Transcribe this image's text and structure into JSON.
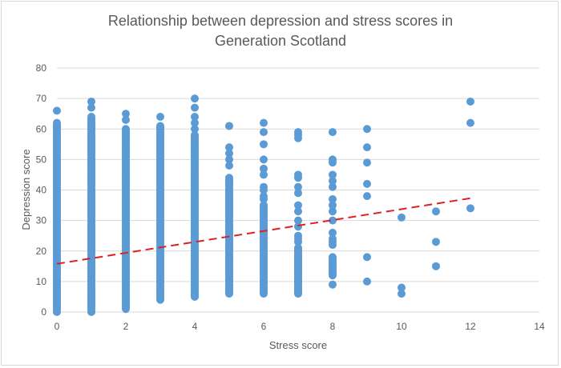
{
  "chart_data": {
    "type": "scatter",
    "title_line1": "Relationship between depression and stress scores in",
    "title_line2": "Generation Scotland",
    "xlabel": "Stress score",
    "ylabel": "Depression score",
    "xlim": [
      0,
      14
    ],
    "ylim": [
      0,
      80
    ],
    "xticks": [
      0,
      2,
      4,
      6,
      8,
      10,
      12,
      14
    ],
    "yticks": [
      0,
      10,
      20,
      30,
      40,
      50,
      60,
      70,
      80
    ],
    "grid": "horizontal",
    "legend": "none",
    "colors": {
      "points": "#5b9bd5",
      "trendline": "#e02020",
      "grid": "#d9d9d9"
    },
    "trendline": {
      "style": "dashed linear",
      "x": [
        0,
        12
      ],
      "y": [
        15.8,
        37.3
      ]
    },
    "columns": [
      {
        "x": 0,
        "dense_range": [
          0,
          62
        ],
        "points": [
          66
        ]
      },
      {
        "x": 1,
        "dense_range": [
          0,
          64
        ],
        "points": [
          67,
          69
        ]
      },
      {
        "x": 2,
        "dense_range": [
          1,
          60
        ],
        "points": [
          63,
          65
        ]
      },
      {
        "x": 3,
        "dense_range": [
          4,
          61
        ],
        "points": [
          64
        ]
      },
      {
        "x": 4,
        "dense_range": [
          5,
          58
        ],
        "points": [
          60,
          62,
          64,
          67,
          70
        ]
      },
      {
        "x": 5,
        "dense_range": [
          6,
          44
        ],
        "points": [
          48,
          50,
          52,
          54,
          61
        ]
      },
      {
        "x": 6,
        "dense_range": [
          6,
          35
        ],
        "points": [
          37,
          38,
          40,
          41,
          45,
          47,
          50,
          55,
          59,
          62
        ]
      },
      {
        "x": 7,
        "dense_range": [
          6,
          21
        ],
        "points": [
          23,
          24,
          25,
          28,
          30,
          33,
          35,
          39,
          41,
          44,
          45,
          57,
          58,
          59
        ]
      },
      {
        "x": 8,
        "dense_range": [
          12,
          18
        ],
        "points": [
          9,
          22,
          23,
          24,
          26,
          30,
          33,
          35,
          37,
          41,
          43,
          45,
          49,
          50,
          59
        ]
      },
      {
        "x": 9,
        "points": [
          10,
          18,
          38,
          42,
          49,
          54,
          60
        ]
      },
      {
        "x": 10,
        "points": [
          6,
          8,
          31
        ]
      },
      {
        "x": 11,
        "points": [
          15,
          23,
          33
        ]
      },
      {
        "x": 12,
        "points": [
          34,
          62,
          69
        ]
      }
    ]
  }
}
